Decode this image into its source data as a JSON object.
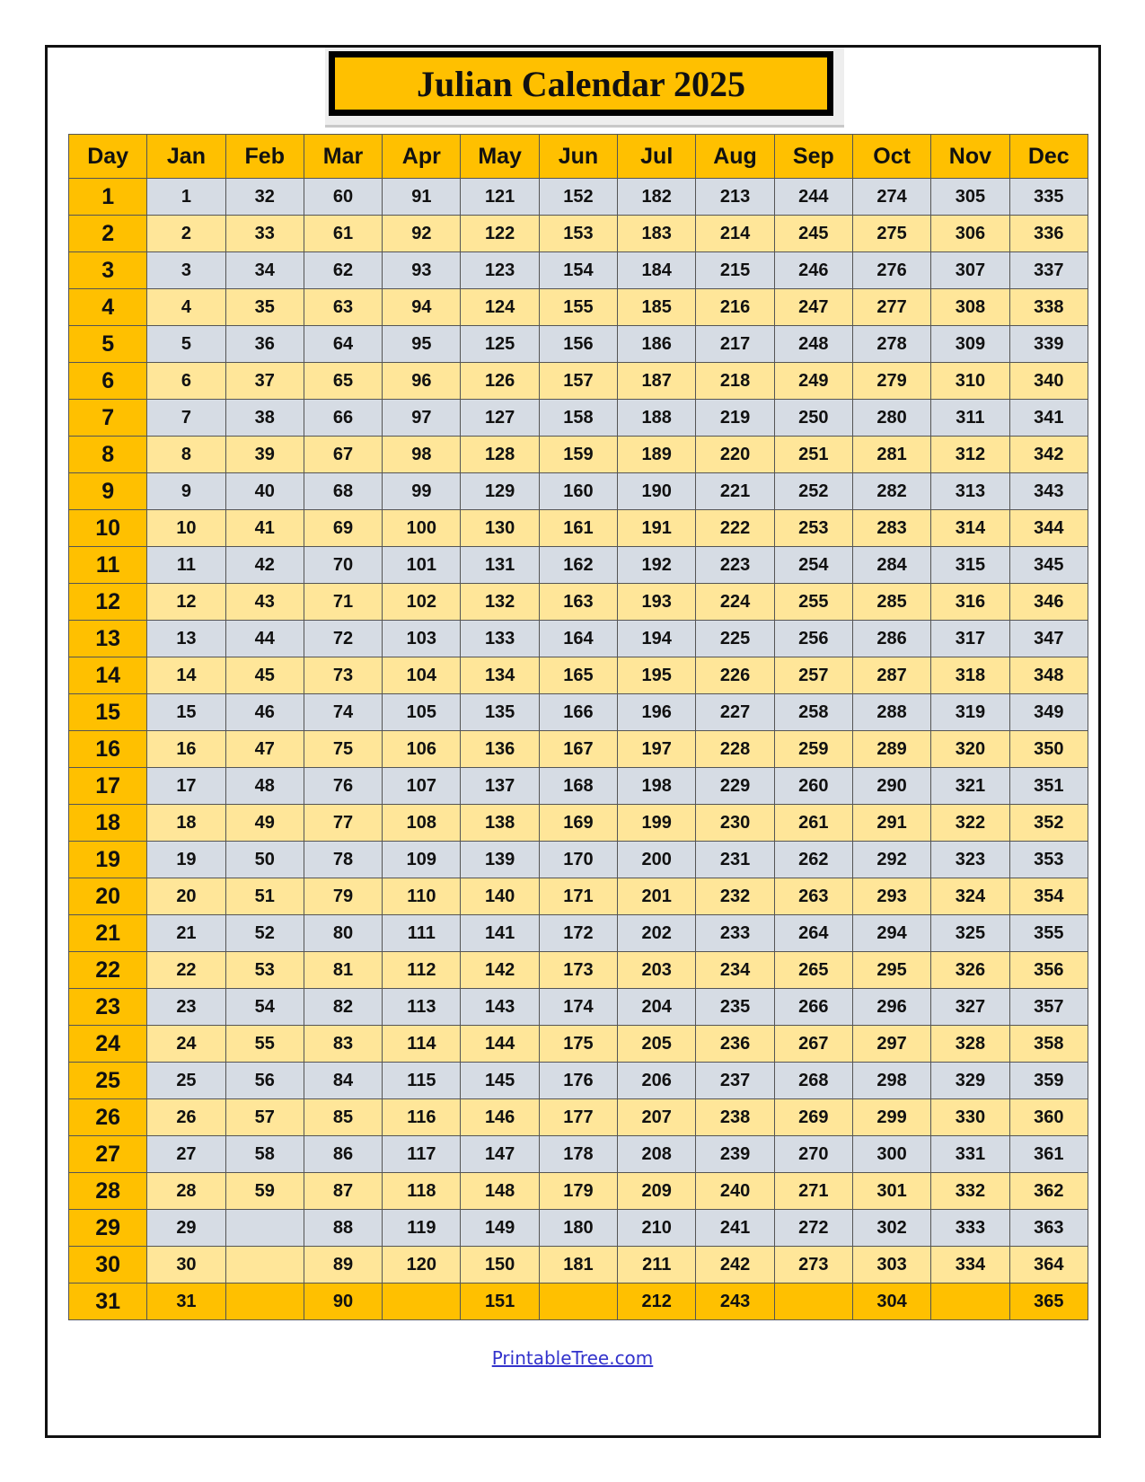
{
  "title": "Julian Calendar 2025",
  "headers": [
    "Day",
    "Jan",
    "Feb",
    "Mar",
    "Apr",
    "May",
    "Jun",
    "Jul",
    "Aug",
    "Sep",
    "Oct",
    "Nov",
    "Dec"
  ],
  "rows": [
    [
      "1",
      "1",
      "32",
      "60",
      "91",
      "121",
      "152",
      "182",
      "213",
      "244",
      "274",
      "305",
      "335"
    ],
    [
      "2",
      "2",
      "33",
      "61",
      "92",
      "122",
      "153",
      "183",
      "214",
      "245",
      "275",
      "306",
      "336"
    ],
    [
      "3",
      "3",
      "34",
      "62",
      "93",
      "123",
      "154",
      "184",
      "215",
      "246",
      "276",
      "307",
      "337"
    ],
    [
      "4",
      "4",
      "35",
      "63",
      "94",
      "124",
      "155",
      "185",
      "216",
      "247",
      "277",
      "308",
      "338"
    ],
    [
      "5",
      "5",
      "36",
      "64",
      "95",
      "125",
      "156",
      "186",
      "217",
      "248",
      "278",
      "309",
      "339"
    ],
    [
      "6",
      "6",
      "37",
      "65",
      "96",
      "126",
      "157",
      "187",
      "218",
      "249",
      "279",
      "310",
      "340"
    ],
    [
      "7",
      "7",
      "38",
      "66",
      "97",
      "127",
      "158",
      "188",
      "219",
      "250",
      "280",
      "311",
      "341"
    ],
    [
      "8",
      "8",
      "39",
      "67",
      "98",
      "128",
      "159",
      "189",
      "220",
      "251",
      "281",
      "312",
      "342"
    ],
    [
      "9",
      "9",
      "40",
      "68",
      "99",
      "129",
      "160",
      "190",
      "221",
      "252",
      "282",
      "313",
      "343"
    ],
    [
      "10",
      "10",
      "41",
      "69",
      "100",
      "130",
      "161",
      "191",
      "222",
      "253",
      "283",
      "314",
      "344"
    ],
    [
      "11",
      "11",
      "42",
      "70",
      "101",
      "131",
      "162",
      "192",
      "223",
      "254",
      "284",
      "315",
      "345"
    ],
    [
      "12",
      "12",
      "43",
      "71",
      "102",
      "132",
      "163",
      "193",
      "224",
      "255",
      "285",
      "316",
      "346"
    ],
    [
      "13",
      "13",
      "44",
      "72",
      "103",
      "133",
      "164",
      "194",
      "225",
      "256",
      "286",
      "317",
      "347"
    ],
    [
      "14",
      "14",
      "45",
      "73",
      "104",
      "134",
      "165",
      "195",
      "226",
      "257",
      "287",
      "318",
      "348"
    ],
    [
      "15",
      "15",
      "46",
      "74",
      "105",
      "135",
      "166",
      "196",
      "227",
      "258",
      "288",
      "319",
      "349"
    ],
    [
      "16",
      "16",
      "47",
      "75",
      "106",
      "136",
      "167",
      "197",
      "228",
      "259",
      "289",
      "320",
      "350"
    ],
    [
      "17",
      "17",
      "48",
      "76",
      "107",
      "137",
      "168",
      "198",
      "229",
      "260",
      "290",
      "321",
      "351"
    ],
    [
      "18",
      "18",
      "49",
      "77",
      "108",
      "138",
      "169",
      "199",
      "230",
      "261",
      "291",
      "322",
      "352"
    ],
    [
      "19",
      "19",
      "50",
      "78",
      "109",
      "139",
      "170",
      "200",
      "231",
      "262",
      "292",
      "323",
      "353"
    ],
    [
      "20",
      "20",
      "51",
      "79",
      "110",
      "140",
      "171",
      "201",
      "232",
      "263",
      "293",
      "324",
      "354"
    ],
    [
      "21",
      "21",
      "52",
      "80",
      "111",
      "141",
      "172",
      "202",
      "233",
      "264",
      "294",
      "325",
      "355"
    ],
    [
      "22",
      "22",
      "53",
      "81",
      "112",
      "142",
      "173",
      "203",
      "234",
      "265",
      "295",
      "326",
      "356"
    ],
    [
      "23",
      "23",
      "54",
      "82",
      "113",
      "143",
      "174",
      "204",
      "235",
      "266",
      "296",
      "327",
      "357"
    ],
    [
      "24",
      "24",
      "55",
      "83",
      "114",
      "144",
      "175",
      "205",
      "236",
      "267",
      "297",
      "328",
      "358"
    ],
    [
      "25",
      "25",
      "56",
      "84",
      "115",
      "145",
      "176",
      "206",
      "237",
      "268",
      "298",
      "329",
      "359"
    ],
    [
      "26",
      "26",
      "57",
      "85",
      "116",
      "146",
      "177",
      "207",
      "238",
      "269",
      "299",
      "330",
      "360"
    ],
    [
      "27",
      "27",
      "58",
      "86",
      "117",
      "147",
      "178",
      "208",
      "239",
      "270",
      "300",
      "331",
      "361"
    ],
    [
      "28",
      "28",
      "59",
      "87",
      "118",
      "148",
      "179",
      "209",
      "240",
      "271",
      "301",
      "332",
      "362"
    ],
    [
      "29",
      "29",
      "",
      "88",
      "119",
      "149",
      "180",
      "210",
      "241",
      "272",
      "302",
      "333",
      "363"
    ],
    [
      "30",
      "30",
      "",
      "89",
      "120",
      "150",
      "181",
      "211",
      "242",
      "273",
      "303",
      "334",
      "364"
    ],
    [
      "31",
      "31",
      "",
      "90",
      "",
      "151",
      "",
      "212",
      "243",
      "",
      "304",
      "",
      "365"
    ]
  ],
  "footer_link": "PrintableTree.com",
  "colors": {
    "accent": "#ffc000",
    "row_alt_gray": "#d6dce4",
    "row_alt_yellow": "#ffe699"
  }
}
